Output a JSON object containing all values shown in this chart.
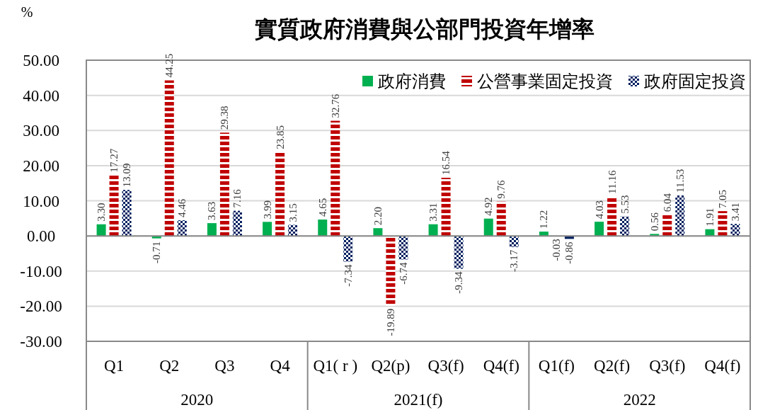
{
  "chart_data": {
    "type": "bar",
    "title": "實質政府消費與公部門投資年增率",
    "ylabel": "%",
    "categories": [
      "Q1",
      "Q2",
      "Q3",
      "Q4",
      "Q1( r )",
      "Q2(p)",
      "Q3(f)",
      "Q4(f)",
      "Q1(f)",
      "Q2(f)",
      "Q3(f)",
      "Q4(f)"
    ],
    "annotations": [
      "2020",
      "2021(f)",
      "2022"
    ],
    "series": [
      {
        "name": "政府消費",
        "color": "#00b050",
        "values": [
          3.3,
          -0.71,
          3.63,
          3.99,
          4.65,
          2.2,
          3.31,
          4.92,
          1.22,
          4.03,
          0.56,
          1.91
        ],
        "value_labels": [
          "3.30",
          "-0.71",
          "3.63",
          "3.99",
          "4.65",
          "2.20",
          "3.31",
          "4.92",
          "1.22",
          "4.03",
          "0.56",
          "1.91"
        ]
      },
      {
        "name": "公營事業固定投資",
        "color": "#c00000",
        "values": [
          17.27,
          44.25,
          29.38,
          23.85,
          32.76,
          -19.89,
          16.54,
          9.76,
          -0.03,
          11.16,
          6.04,
          7.05
        ],
        "value_labels": [
          "17.27",
          "44.25",
          "29.38",
          "23.85",
          "32.76",
          "-19.89",
          "16.54",
          "9.76",
          "-0.03",
          "11.16",
          "6.04",
          "7.05"
        ]
      },
      {
        "name": "政府固定投資",
        "color": "#002060",
        "values": [
          13.09,
          4.46,
          7.16,
          3.15,
          -7.34,
          -6.74,
          -9.34,
          -3.17,
          -0.86,
          5.53,
          11.53,
          3.41
        ],
        "value_labels": [
          "13.09",
          "4.46",
          "7.16",
          "3.15",
          "-7.34",
          "-6.74",
          "-9.34",
          "-3.17",
          "-0.86",
          "5.53",
          "11.53",
          "3.41"
        ]
      }
    ],
    "ylim": [
      -30,
      50
    ],
    "yticks": [
      {
        "value": -30,
        "label": "-30.00"
      },
      {
        "value": -20,
        "label": "-20.00"
      },
      {
        "value": -10,
        "label": "-10.00"
      },
      {
        "value": 0,
        "label": "0.00"
      },
      {
        "value": 10,
        "label": "10.00"
      },
      {
        "value": 20,
        "label": "20.00"
      },
      {
        "value": 30,
        "label": "30.00"
      },
      {
        "value": 40,
        "label": "40.00"
      },
      {
        "value": 50,
        "label": "50.00"
      }
    ],
    "grid": "y",
    "legend": "top right"
  }
}
